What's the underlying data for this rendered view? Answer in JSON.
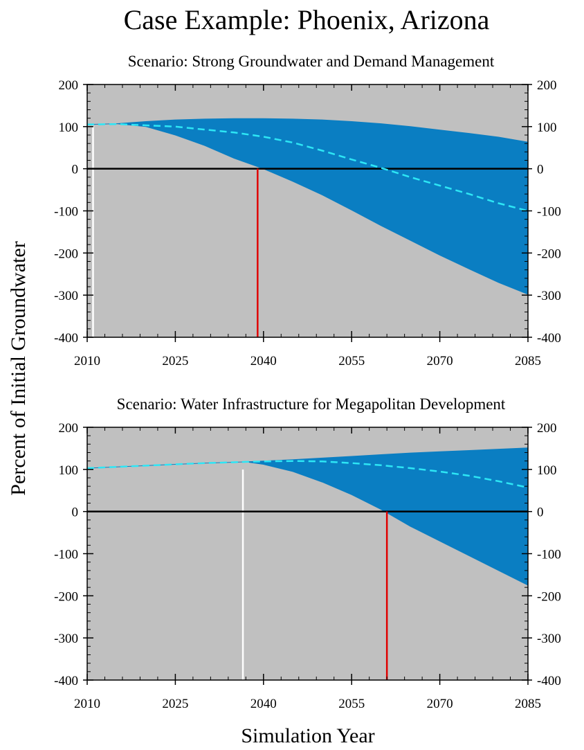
{
  "figure": {
    "title": "Case Example: Phoenix, Arizona",
    "ylabel": "Percent of Initial Groundwater",
    "xlabel": "Simulation Year"
  },
  "colors": {
    "background": "#c0c0c0",
    "band": "#0a7ec2",
    "median": "#2de6f5",
    "zero_line": "#000000",
    "depletion_marker": "#e00000",
    "start_marker": "#ffffff"
  },
  "chart_data": [
    {
      "type": "area",
      "subtitle": "Scenario: Strong Groundwater and Demand Management",
      "xlim": [
        2010,
        2085
      ],
      "ylim": [
        -400,
        200
      ],
      "xticks": [
        2010,
        2025,
        2040,
        2055,
        2070,
        2085
      ],
      "yticks": [
        200,
        100,
        0,
        -100,
        -200,
        -300,
        -400
      ],
      "x": [
        2010,
        2015,
        2020,
        2025,
        2030,
        2035,
        2040,
        2045,
        2050,
        2055,
        2060,
        2065,
        2070,
        2075,
        2080,
        2085
      ],
      "upper": [
        105,
        107,
        112,
        116,
        118,
        119,
        119,
        118,
        116,
        112,
        107,
        100,
        92,
        84,
        75,
        63
      ],
      "lower": [
        105,
        107,
        100,
        80,
        55,
        25,
        0,
        -30,
        -62,
        -98,
        -135,
        -170,
        -205,
        -238,
        -270,
        -298
      ],
      "median": [
        105,
        106,
        103,
        100,
        93,
        86,
        76,
        62,
        43,
        22,
        2,
        -20,
        -40,
        -60,
        -82,
        -100
      ],
      "zero_line": 0,
      "start_marker_year": 2011,
      "depletion_year": 2039
    },
    {
      "type": "area",
      "subtitle": "Scenario: Water Infrastructure for Megapolitan Development",
      "xlim": [
        2010,
        2085
      ],
      "ylim": [
        -400,
        200
      ],
      "xticks": [
        2010,
        2025,
        2040,
        2055,
        2070,
        2085
      ],
      "yticks": [
        200,
        100,
        0,
        -100,
        -200,
        -300,
        -400
      ],
      "x": [
        2010,
        2015,
        2020,
        2025,
        2030,
        2035,
        2037,
        2040,
        2045,
        2050,
        2055,
        2060,
        2065,
        2070,
        2075,
        2080,
        2085
      ],
      "upper": [
        103,
        106,
        109,
        112,
        115,
        117,
        118,
        120,
        123,
        127,
        131,
        135,
        139,
        142,
        145,
        148,
        151
      ],
      "lower": [
        103,
        106,
        109,
        112,
        115,
        117,
        118,
        112,
        95,
        70,
        40,
        5,
        -35,
        -70,
        -105,
        -140,
        -175
      ],
      "median": [
        103,
        106,
        109,
        112,
        115,
        117,
        118,
        119,
        120,
        119,
        115,
        110,
        103,
        95,
        85,
        72,
        57
      ],
      "zero_line": 0,
      "start_marker_year": 2036.5,
      "depletion_year": 2061
    }
  ]
}
